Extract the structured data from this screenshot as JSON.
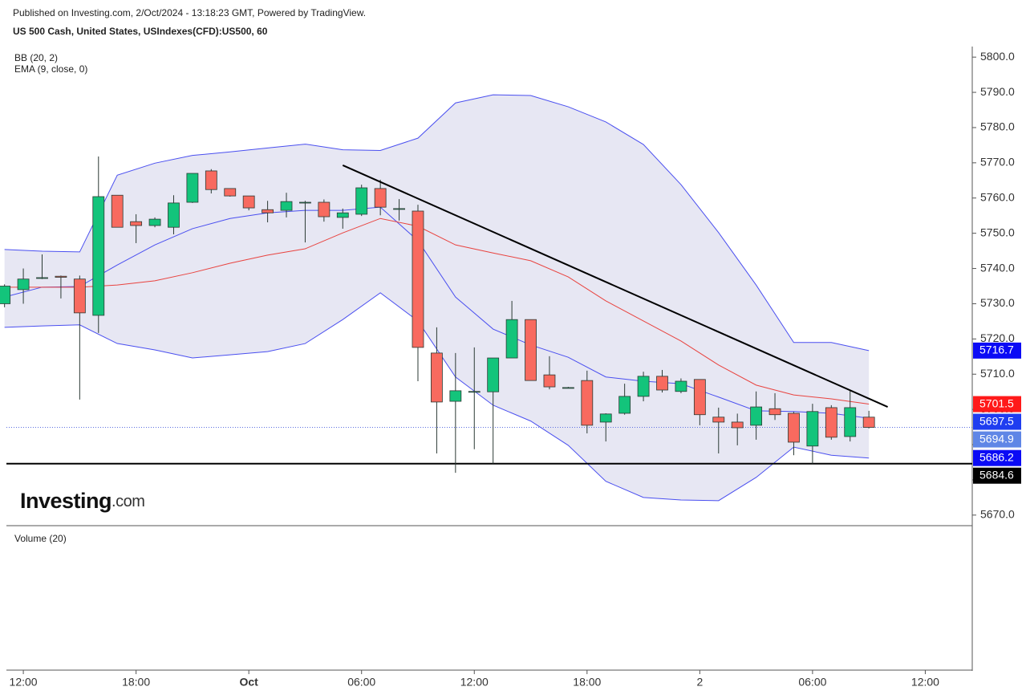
{
  "chart_data": {
    "type": "candlestick",
    "subtitle": "Published on Investing.com, 2/Oct/2024 - 13:18:23 GMT, Powered by TradingView.",
    "title": "US 500 Cash, United States, USIndexes(CFD):US500, 60",
    "indicator_labels": [
      "BB (20, 2)",
      "EMA (9, close, 0)"
    ],
    "volume_label": "Volume (20)",
    "logo": "Investing",
    "logo_suffix": ".com",
    "x": [
      -13,
      -12,
      -11,
      -10,
      -9,
      -8,
      -7,
      -6,
      -5,
      -4,
      -3,
      -2,
      -1,
      0,
      1,
      2,
      3,
      4,
      5,
      6,
      7,
      8,
      9,
      10,
      11,
      12,
      13,
      14,
      15,
      16,
      17,
      18,
      19,
      20,
      21,
      22,
      23,
      24,
      25,
      26,
      27,
      28,
      29,
      30,
      31,
      32,
      33
    ],
    "open": [
      5730,
      5734,
      5737.2,
      5737.8,
      5737,
      5726.7,
      5760.8,
      5753.3,
      5752.2,
      5751.7,
      5758.8,
      5767.7,
      5762.7,
      5760.6,
      5756.7,
      5756.5,
      5758.6,
      5758.8,
      5754.5,
      5755.4,
      5762.7,
      5757,
      5756.3,
      5716,
      5702.3,
      5705,
      5705,
      5714.6,
      5725.5,
      5709.8,
      5706.2,
      5708.2,
      5696.4,
      5698.9,
      5703.7,
      5709.4,
      5705.1,
      5708.5,
      5697.8,
      5696.4,
      5695.5,
      5700.2,
      5698.9,
      5689.6,
      5700.5,
      5692.3,
      5697.8
    ],
    "high": [
      5735.5,
      5740,
      5744,
      5738,
      5738,
      5771.8,
      5760.8,
      5755.4,
      5754.5,
      5760.8,
      5767,
      5768.2,
      5762.7,
      5760.6,
      5759.2,
      5761.5,
      5759.2,
      5759.6,
      5757,
      5763.8,
      5765.2,
      5759.7,
      5758.1,
      5723.3,
      5716,
      5717.6,
      5714.6,
      5730.8,
      5725.5,
      5715.1,
      5706.4,
      5711,
      5698.9,
      5707.3,
      5710.7,
      5711.2,
      5708.8,
      5708.5,
      5700.5,
      5698.8,
      5705.1,
      5704.6,
      5699.3,
      5701.6,
      5701.2,
      5705.5,
      5699.6
    ],
    "low": [
      5729,
      5730,
      5737,
      5731.5,
      5702.8,
      5721.7,
      5751.7,
      5747.2,
      5751.7,
      5749.7,
      5758.6,
      5761.3,
      5760.4,
      5756.5,
      5753.1,
      5754.5,
      5747.4,
      5753.3,
      5751.3,
      5754.9,
      5755.1,
      5753.6,
      5708,
      5687.5,
      5682,
      5688.7,
      5684.6,
      5714.6,
      5708.2,
      5705.7,
      5706,
      5693.2,
      5690.9,
      5698.5,
      5702.3,
      5704.8,
      5704.6,
      5695.5,
      5687.5,
      5689.8,
      5691.4,
      5697,
      5687,
      5684.6,
      5691.4,
      5690.9,
      5694.6
    ],
    "close": [
      5735,
      5737,
      5737.4,
      5737.5,
      5727.4,
      5760.4,
      5751.7,
      5752.2,
      5754,
      5758.6,
      5767,
      5762.4,
      5760.6,
      5757.2,
      5755.8,
      5759,
      5758.8,
      5754.7,
      5755.8,
      5762.9,
      5757.4,
      5757,
      5717.6,
      5702.1,
      5705.3,
      5705.1,
      5714.6,
      5725.5,
      5708.2,
      5706.4,
      5706.2,
      5695.5,
      5698.7,
      5703.7,
      5709.4,
      5705.5,
      5708,
      5698.5,
      5696.4,
      5694.8,
      5700.7,
      5698.5,
      5690.7,
      5699.4,
      5692.1,
      5700.5,
      5694.9
    ],
    "up_color": "#13c47b",
    "down_color": "#f86a5f",
    "wick_color": "#2b3a34",
    "overlays": {
      "x": [
        -13,
        -11,
        -9,
        -7,
        -5,
        -3,
        -1,
        1,
        3,
        5,
        7,
        9,
        11,
        13,
        15,
        17,
        19,
        21,
        23,
        25,
        27,
        29,
        31,
        33
      ],
      "bb_upper": [
        5745.4,
        5744.9,
        5744.7,
        5766.5,
        5769.9,
        5772.1,
        5773.1,
        5774.2,
        5775.3,
        5773.7,
        5773.5,
        5777.0,
        5787.0,
        5789.3,
        5789.1,
        5785.9,
        5781.6,
        5775.2,
        5763.8,
        5750.2,
        5735.3,
        5719.0,
        5719.0,
        5716.7
      ],
      "bb_basis": [
        5731.9,
        5734.7,
        5734.9,
        5741.0,
        5746.7,
        5751.3,
        5754.2,
        5755.8,
        5756.5,
        5756.5,
        5757.4,
        5747.9,
        5731.9,
        5722.8,
        5718.3,
        5714.8,
        5709.2,
        5708.0,
        5707.3,
        5703.5,
        5699.6,
        5699.4,
        5698.9,
        5697.5
      ],
      "bb_lower": [
        5723.3,
        5723.7,
        5724.0,
        5718.7,
        5716.9,
        5714.6,
        5715.5,
        5716.4,
        5718.7,
        5725.5,
        5733.1,
        5725.1,
        5709.2,
        5701.2,
        5696.7,
        5689.8,
        5679.6,
        5675.0,
        5674.3,
        5674.1,
        5680.7,
        5689.3,
        5687.0,
        5686.2
      ],
      "ema": [
        5734.7,
        5734.7,
        5734.7,
        5735.3,
        5736.5,
        5738.8,
        5741.5,
        5743.8,
        5745.6,
        5750.1,
        5754.2,
        5752.0,
        5746.7,
        5744.4,
        5742.2,
        5737.6,
        5730.8,
        5725.1,
        5719.4,
        5712.6,
        5706.9,
        5704.1,
        5703.0,
        5701.5
      ],
      "bb_color": "#4a4ff0",
      "bb_fill": "#e6e6f2",
      "ema_color": "#e8433f"
    },
    "trendlines": [
      {
        "x": [
          5,
          34
        ],
        "y": [
          5769.3,
          5700.7
        ],
        "color": "#000000"
      }
    ],
    "support": 5684.6,
    "price_labels": [
      {
        "value": 5716.7,
        "color": "#0b0bf5"
      },
      {
        "value": 5701.5,
        "color": "#ff1a1a"
      },
      {
        "value": 5697.5,
        "color": "#1f3df0"
      },
      {
        "value": 5694.9,
        "color": "#5f86e6"
      },
      {
        "value": 5686.2,
        "color": "#0b0bf5"
      },
      {
        "value": 5684.6,
        "color": "#000000"
      }
    ],
    "xlim": [
      -12.9,
      38.5
    ],
    "ylim": [
      5667.0,
      5803.0
    ],
    "yticks": [
      {
        "value": 5670,
        "label": "5670.0"
      },
      {
        "value": 5680,
        "label": "5680.0"
      },
      {
        "value": 5690,
        "label": "5690.0"
      },
      {
        "value": 5700,
        "label": "5700.0"
      },
      {
        "value": 5710,
        "label": "5710.0"
      },
      {
        "value": 5720,
        "label": "5720.0"
      },
      {
        "value": 5730,
        "label": "5730.0"
      },
      {
        "value": 5740,
        "label": "5740.0"
      },
      {
        "value": 5750,
        "label": "5750.0"
      },
      {
        "value": 5760,
        "label": "5760.0"
      },
      {
        "value": 5770,
        "label": "5770.0"
      },
      {
        "value": 5780,
        "label": "5780.0"
      },
      {
        "value": 5790,
        "label": "5790.0"
      },
      {
        "value": 5800,
        "label": "5800.0"
      }
    ],
    "xticks": [
      {
        "value": -12,
        "label": "12:00"
      },
      {
        "value": -6,
        "label": "18:00"
      },
      {
        "value": 0,
        "label": "Oct"
      },
      {
        "value": 6,
        "label": "06:00"
      },
      {
        "value": 12,
        "label": "12:00"
      },
      {
        "value": 18,
        "label": "18:00"
      },
      {
        "value": 24,
        "label": "2"
      },
      {
        "value": 30,
        "label": "06:00"
      },
      {
        "value": 36,
        "label": "12:00"
      }
    ]
  }
}
